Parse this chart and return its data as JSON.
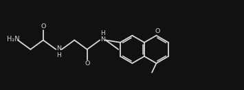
{
  "bg_color": "#111111",
  "line_color": "#d8d8d8",
  "text_color": "#d8d8d8",
  "figsize": [
    3.55,
    1.31
  ],
  "dpi": 100,
  "lw": 1.3,
  "fs": 6.5,
  "xlim": [
    0,
    10
  ],
  "ylim": [
    0,
    3.7
  ]
}
